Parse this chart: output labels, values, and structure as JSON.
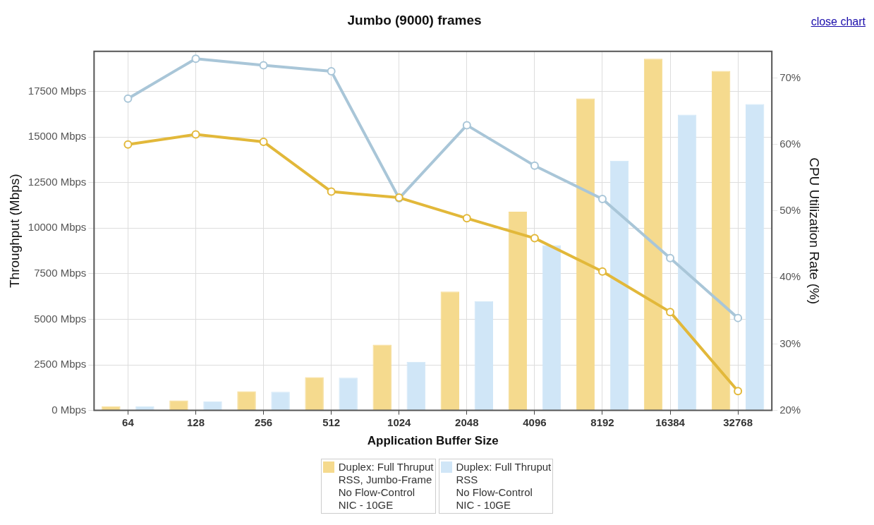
{
  "chart_data": {
    "type": "bar",
    "title": "Jumbo (9000) frames",
    "xlabel": "Application Buffer Size",
    "ylabel": "Throughput (Mbps)",
    "y2label": "CPU Utilization Rate (%)",
    "categories": [
      "64",
      "128",
      "256",
      "512",
      "1024",
      "2048",
      "4096",
      "8192",
      "16384",
      "32768"
    ],
    "series": [
      {
        "name": "Duplex: Full Thruput\nRSS, Jumbo-Frame\nNo Flow-Control\nNIC - 10GE",
        "color": "#f5da8e",
        "values": [
          230,
          550,
          1050,
          1820,
          3600,
          6520,
          10900,
          17120,
          19300,
          18630
        ]
      },
      {
        "name": "Duplex: Full Thruput\nRSS\nNo Flow-Control\nNIC - 10GE",
        "color": "#d0e6f7",
        "values": [
          230,
          500,
          1020,
          1790,
          2670,
          6000,
          9060,
          13700,
          16230,
          16810
        ]
      },
      {
        "type": "line",
        "axis": "y2",
        "color": "#e2b83a",
        "values": [
          60.0,
          61.5,
          60.4,
          52.9,
          52.0,
          48.9,
          45.9,
          40.9,
          34.8,
          22.9
        ]
      },
      {
        "type": "line",
        "axis": "y2",
        "color": "#a9c6d8",
        "values": [
          66.9,
          72.9,
          71.9,
          71.0,
          51.9,
          62.9,
          56.8,
          51.8,
          42.9,
          33.9
        ]
      }
    ],
    "ylim": [
      0,
      19700
    ],
    "yticks": [
      {
        "value": 0,
        "label": "0 Mbps"
      },
      {
        "value": 2500,
        "label": "2500 Mbps"
      },
      {
        "value": 5000,
        "label": "5000 Mbps"
      },
      {
        "value": 7500,
        "label": "7500 Mbps"
      },
      {
        "value": 10000,
        "label": "10000 Mbps"
      },
      {
        "value": 12500,
        "label": "12500 Mbps"
      },
      {
        "value": 15000,
        "label": "15000 Mbps"
      },
      {
        "value": 17500,
        "label": "17500 Mbps"
      }
    ],
    "y2lim": [
      20,
      74
    ],
    "y2ticks": [
      {
        "value": 20,
        "label": "20%"
      },
      {
        "value": 30,
        "label": "30%"
      },
      {
        "value": 40,
        "label": "40%"
      },
      {
        "value": 50,
        "label": "50%"
      },
      {
        "value": 60,
        "label": "60%"
      },
      {
        "value": 70,
        "label": "70%"
      }
    ],
    "grid": true,
    "legend": "bottom",
    "marker": "circle",
    "line_style": "solid",
    "annotations": [
      "close chart"
    ]
  }
}
